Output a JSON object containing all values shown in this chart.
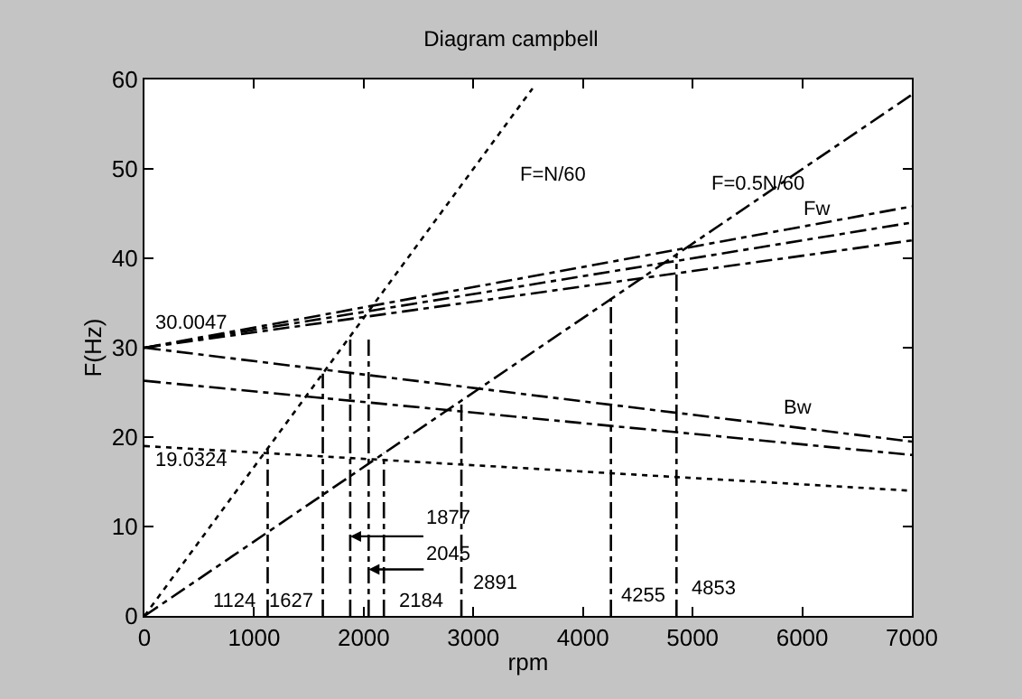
{
  "chart_data": {
    "type": "line",
    "title": "Diagram campbell",
    "xlabel": "rpm",
    "ylabel": "F(Hz)",
    "xlim": [
      0,
      7000
    ],
    "xticks": [
      0,
      1000,
      2000,
      3000,
      4000,
      5000,
      6000,
      7000
    ],
    "ylim": [
      0,
      60
    ],
    "yticks": [
      0,
      10,
      20,
      30,
      40,
      50,
      60
    ],
    "legend": false,
    "marker": "none",
    "series": [
      {
        "name": "F=N/60",
        "color": "#000000",
        "line_style": "dotted",
        "x": [
          0,
          3540
        ],
        "values": [
          0,
          59
        ]
      },
      {
        "name": "F=0.5N/60",
        "color": "#000000",
        "line_style": "dashed",
        "x": [
          0,
          7000
        ],
        "values": [
          0,
          58.3
        ]
      },
      {
        "name": "Fw",
        "color": "#000000",
        "line_style": "dashed",
        "x": [
          0,
          7000
        ],
        "values": [
          30,
          45.8
        ]
      },
      {
        "color": "#000000",
        "line_style": "dashed",
        "x": [
          0,
          7000
        ],
        "values": [
          30,
          44
        ]
      },
      {
        "color": "#000000",
        "line_style": "dashed",
        "x": [
          0,
          7000
        ],
        "values": [
          30,
          42
        ]
      },
      {
        "name": "Bw",
        "color": "#000000",
        "line_style": "dashed",
        "x": [
          0,
          7000
        ],
        "values": [
          30,
          19.5
        ]
      },
      {
        "color": "#000000",
        "line_style": "dashed",
        "x": [
          0,
          7000
        ],
        "values": [
          26.3,
          18
        ]
      },
      {
        "color": "#000000",
        "line_style": "dotted",
        "x": [
          0,
          7000
        ],
        "values": [
          19,
          14
        ]
      },
      {
        "color": "#000000",
        "line_style": "dashed",
        "x": [
          1124,
          1124
        ],
        "values": [
          0,
          18.7
        ]
      },
      {
        "color": "#000000",
        "line_style": "dashed",
        "x": [
          1627,
          1627
        ],
        "values": [
          0,
          27.1
        ]
      },
      {
        "color": "#000000",
        "line_style": "dashed",
        "x": [
          1877,
          1877
        ],
        "values": [
          0,
          31.5
        ]
      },
      {
        "color": "#000000",
        "line_style": "dashed",
        "x": [
          2045,
          2045
        ],
        "values": [
          0,
          31.5
        ]
      },
      {
        "color": "#000000",
        "line_style": "dashed",
        "x": [
          2184,
          2184
        ],
        "values": [
          0,
          18.2
        ]
      },
      {
        "color": "#000000",
        "line_style": "dashed",
        "x": [
          2891,
          2891
        ],
        "values": [
          0,
          24.1
        ]
      },
      {
        "color": "#000000",
        "line_style": "dashed",
        "x": [
          4255,
          4255
        ],
        "values": [
          0,
          35.5
        ]
      },
      {
        "color": "#000000",
        "line_style": "dashed",
        "x": [
          4853,
          4853
        ],
        "values": [
          0,
          40.4
        ]
      }
    ],
    "annotations": [
      {
        "text": "30.0047",
        "x": 0,
        "y": 30
      },
      {
        "text": "19.0324",
        "x": 0,
        "y": 19.03
      },
      {
        "text": "1124",
        "x": 1124,
        "y": 1.6
      },
      {
        "text": "1627",
        "x": 1627,
        "y": 1.6
      },
      {
        "text": "1877",
        "x": 1877,
        "y": 8.9
      },
      {
        "text": "2045",
        "x": 2045,
        "y": 5.2
      },
      {
        "text": "2184",
        "x": 2184,
        "y": 1.6
      },
      {
        "text": "2891",
        "x": 2891,
        "y": 3.6
      },
      {
        "text": "4255",
        "x": 4255,
        "y": 2.3
      },
      {
        "text": "4853",
        "x": 4853,
        "y": 3
      }
    ]
  }
}
